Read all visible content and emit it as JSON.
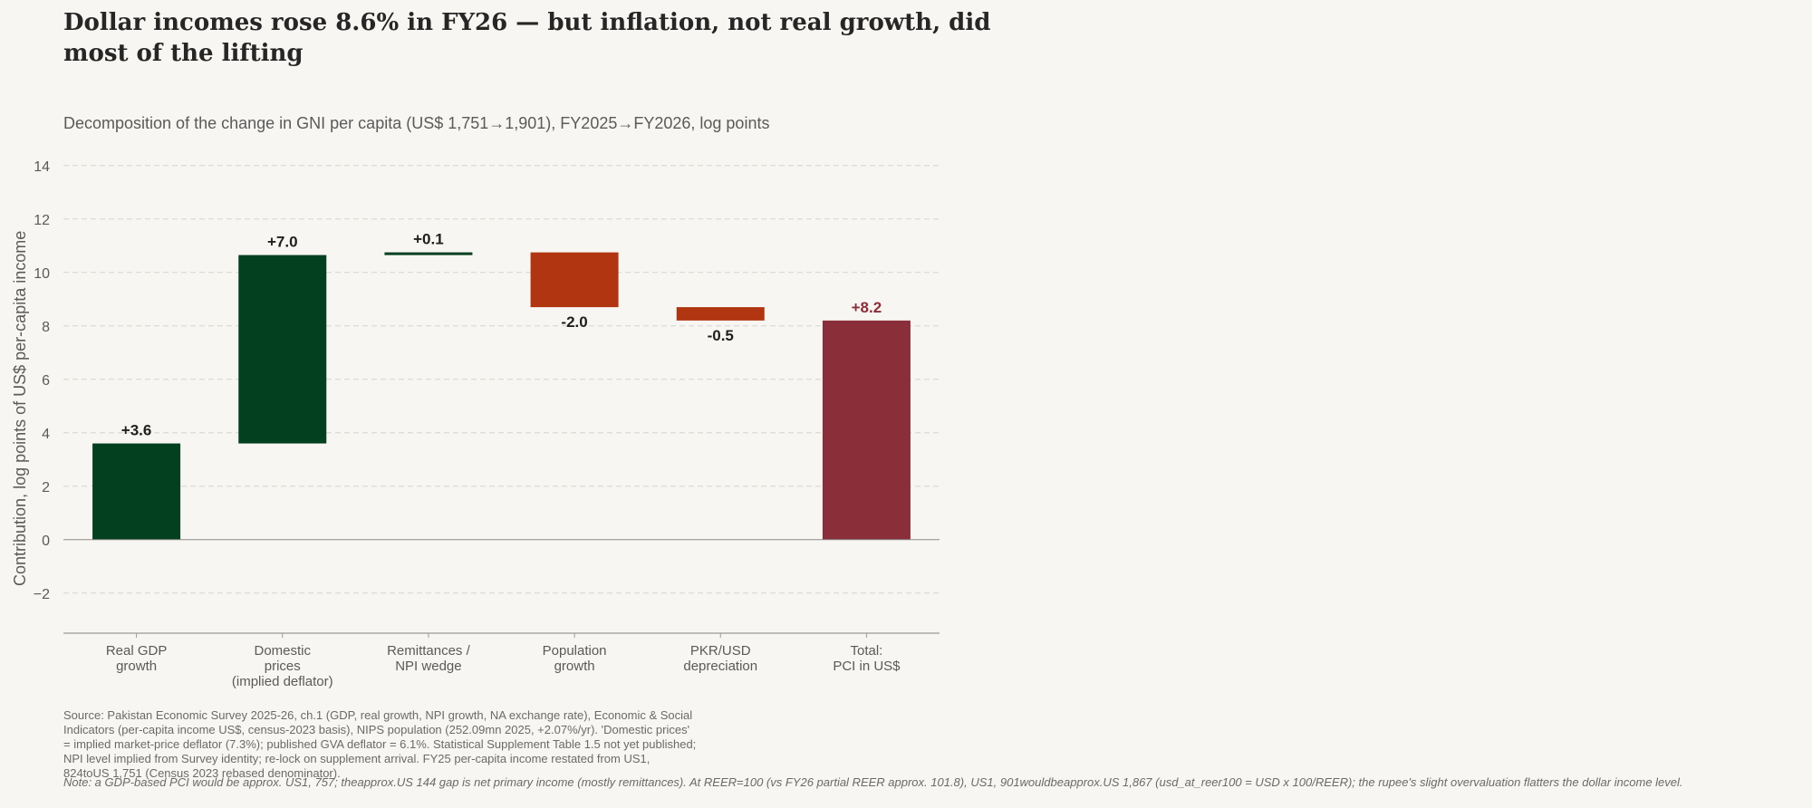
{
  "title": "Dollar incomes rose 8.6% in FY26 — but inflation, not real growth, did most of the lifting",
  "subtitle": "Decomposition of the change in GNI per capita (US$ 1,751→1,901), FY2025→FY2026, log points",
  "source": "Source: Pakistan Economic Survey 2025-26, ch.1 (GDP, real growth, NPI growth, NA exchange rate), Economic & Social Indicators (per-capita income US$, census-2023 basis), NIPS population (252.09mn 2025, +2.07%/yr). 'Domestic prices' = implied market-price deflator (7.3%); published GVA deflator = 6.1%. Statistical Supplement Table 1.5 not yet published; NPI level implied from Survey identity; re-lock on supplement arrival. FY25 per-capita income restated from US1, 824toUS 1,751 (Census 2023 rebased denominator).",
  "note": "Note: a GDP-based PCI would be approx. US1, 757; theapprox.US 144 gap is net primary income (mostly remittances). At REER=100 (vs FY26 partial REER approx. 101.8), US1, 901wouldbeapprox.US 1,867 (usd_at_reer100 = USD x 100/REER); the rupee's slight overvaluation flatters the dollar income level.",
  "colors": {
    "positive": "#03401f",
    "negative": "#b03510",
    "total": "#8a2e3a",
    "total_label": "#8a2e3a",
    "grid": "#d6d3ce",
    "axis_text": "#5a5a5a"
  },
  "chart_data": {
    "type": "bar",
    "subtype": "waterfall",
    "ylabel": "Contribution, log points of US$ per-capita income",
    "ylim": [
      -3.5,
      14.5
    ],
    "yticks": [
      -2,
      0,
      2,
      4,
      6,
      8,
      10,
      12,
      14
    ],
    "ytick_labels": [
      "−2",
      "0",
      "2",
      "4",
      "6",
      "8",
      "10",
      "12",
      "14"
    ],
    "grid": true,
    "categories": [
      [
        "Real GDP",
        "growth"
      ],
      [
        "Domestic",
        "prices",
        "(implied deflator)"
      ],
      [
        "Remittances /",
        "NPI wedge"
      ],
      [
        "Population",
        "growth"
      ],
      [
        "PKR/USD",
        "depreciation"
      ],
      [
        "Total:",
        "PCI in US$"
      ]
    ],
    "bars": [
      {
        "start": 0,
        "end": 3.6,
        "label": "+3.6",
        "kind": "positive"
      },
      {
        "start": 3.6,
        "end": 10.65,
        "label": "+7.0",
        "kind": "positive"
      },
      {
        "start": 10.65,
        "end": 10.75,
        "label": "+0.1",
        "kind": "positive"
      },
      {
        "start": 10.75,
        "end": 8.7,
        "label": "-2.0",
        "kind": "negative"
      },
      {
        "start": 8.7,
        "end": 8.2,
        "label": "-0.5",
        "kind": "negative"
      },
      {
        "start": 0,
        "end": 8.2,
        "label": "+8.2",
        "kind": "total"
      }
    ]
  }
}
